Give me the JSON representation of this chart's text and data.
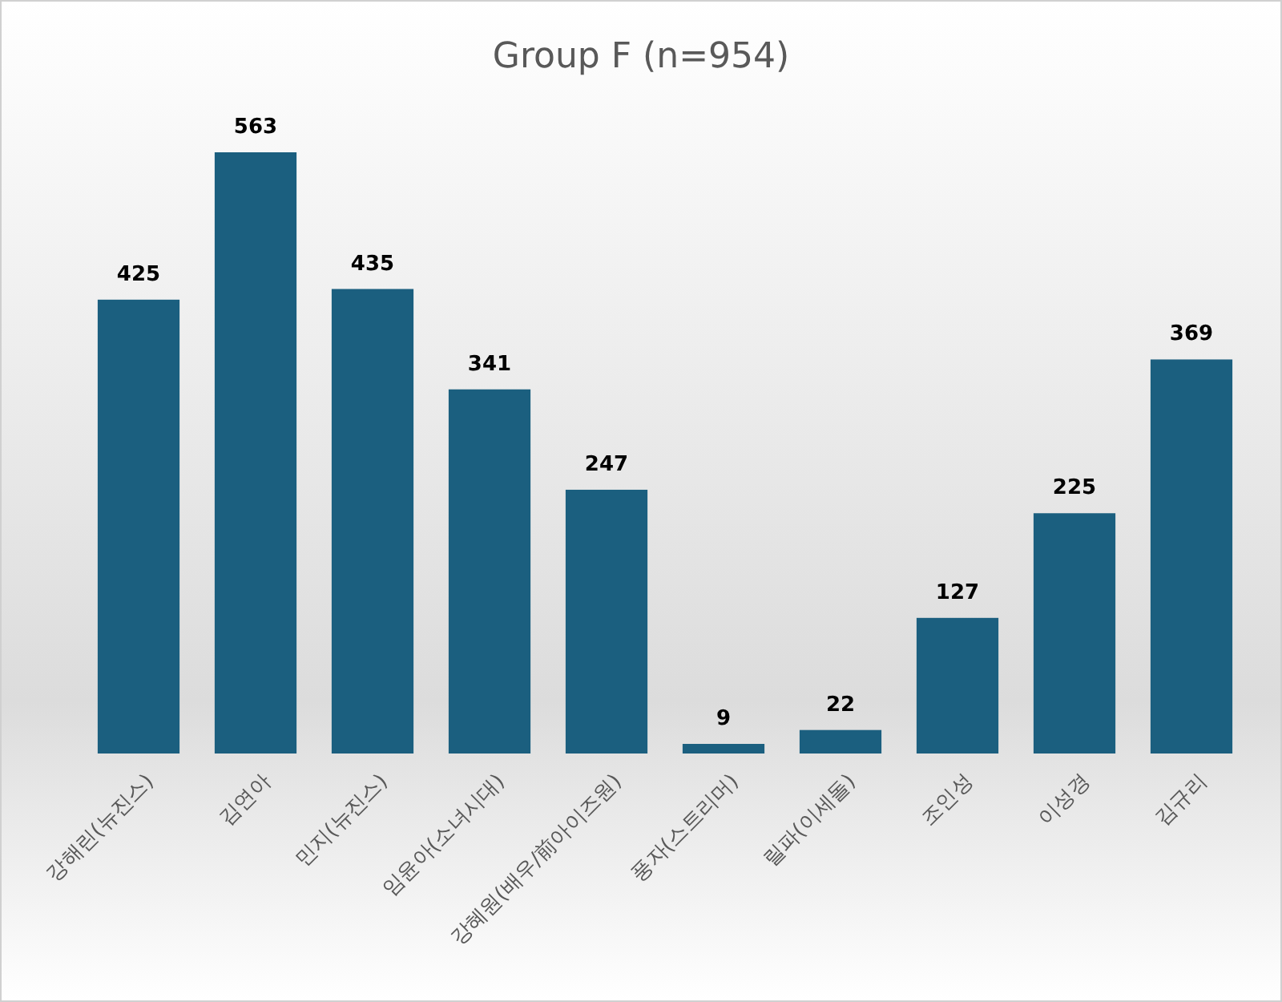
{
  "chart_data": {
    "type": "bar",
    "title": "Group F (n=954)",
    "categories": [
      "강해린(뉴진스)",
      "김연아",
      "민지(뉴진스)",
      "임윤아(소녀시대)",
      "강혜원(배우/前아이즈원)",
      "풍자(스트리머)",
      "릴파(이세돌)",
      "조인성",
      "이성경",
      "김규리"
    ],
    "values": [
      425,
      563,
      435,
      341,
      247,
      9,
      22,
      127,
      225,
      369
    ],
    "color": "#1b5f7f",
    "data_labels": true
  }
}
